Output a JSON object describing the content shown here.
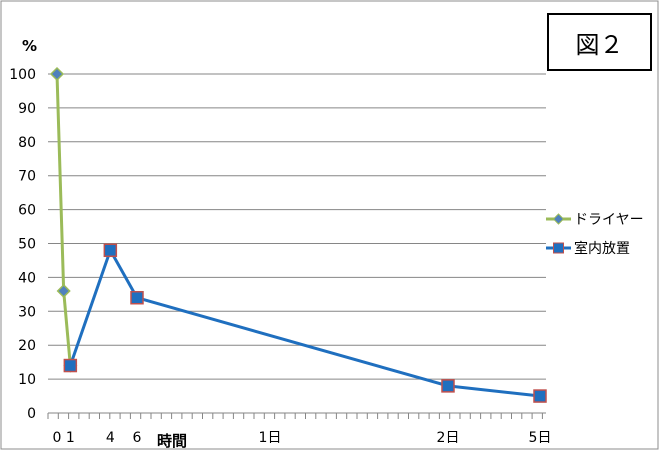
{
  "figure_label": "図２",
  "chart_data": {
    "type": "line",
    "y_unit_label": "%",
    "x_unit_label": "時間",
    "ylim": [
      0,
      100
    ],
    "y_ticks": [
      0,
      10,
      20,
      30,
      40,
      50,
      60,
      70,
      80,
      90,
      100
    ],
    "x_tick_labels": [
      {
        "x": 0,
        "label": "0"
      },
      {
        "x": 1,
        "label": "1"
      },
      {
        "x": 4,
        "label": "4"
      },
      {
        "x": 6,
        "label": "6"
      },
      {
        "x": 24,
        "label": "1日"
      },
      {
        "x": 48,
        "label": "2日"
      },
      {
        "x": 120,
        "label": "5日"
      }
    ],
    "grid": true,
    "legend_position": "right",
    "series": [
      {
        "name": "ドライヤー",
        "color": "#9bbb59",
        "marker": "diamond",
        "points": [
          {
            "x": 0,
            "y": 100
          },
          {
            "x": 0.5,
            "y": 36
          },
          {
            "x": 1,
            "y": 14
          }
        ]
      },
      {
        "name": "室内放置",
        "color": "#1f6fbf",
        "marker": "square",
        "points": [
          {
            "x": 1,
            "y": 14
          },
          {
            "x": 4,
            "y": 48
          },
          {
            "x": 6,
            "y": 34
          },
          {
            "x": 48,
            "y": 8
          },
          {
            "x": 120,
            "y": 5
          }
        ]
      }
    ]
  }
}
